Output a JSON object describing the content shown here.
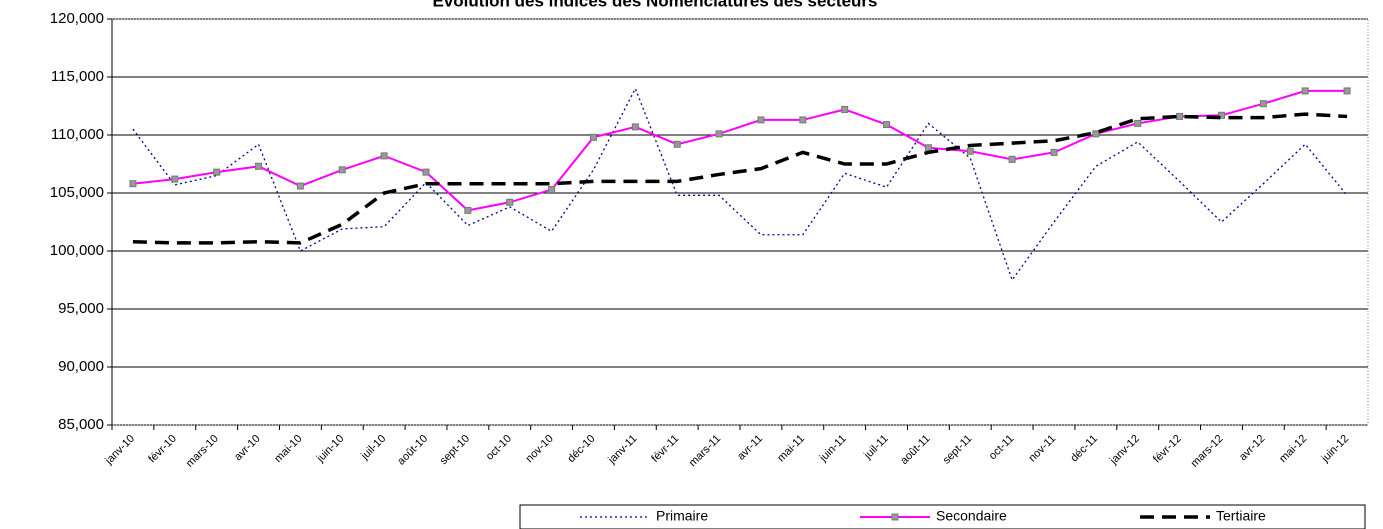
{
  "chart_data": {
    "type": "line",
    "title": "Evolution des indices des Nomenclatures des secteurs",
    "categories": [
      "janv-10",
      "févr-10",
      "mars-10",
      "avr-10",
      "mai-10",
      "juin-10",
      "juil-10",
      "août-10",
      "sept-10",
      "oct-10",
      "nov-10",
      "déc-10",
      "janv-11",
      "févr-11",
      "mars-11",
      "avr-11",
      "mai-11",
      "juin-11",
      "juil-11",
      "août-11",
      "sept-11",
      "oct-11",
      "nov-11",
      "déc-11",
      "janv-12",
      "févr-12",
      "mars-12",
      "avr-12",
      "mai-12",
      "juin-12"
    ],
    "series": [
      {
        "name": "Primaire",
        "color": "#000099",
        "values": [
          110500,
          105700,
          106500,
          109200,
          100000,
          101900,
          102100,
          105900,
          102200,
          103800,
          101700,
          107000,
          114000,
          104800,
          104800,
          101400,
          101400,
          106700,
          105500,
          111000,
          108000,
          97500,
          102500,
          107300,
          109400,
          106000,
          102500,
          105800,
          109200,
          104800
        ]
      },
      {
        "name": "Secondaire",
        "color": "#ff00ff",
        "values": [
          105800,
          106200,
          106800,
          107300,
          105600,
          107000,
          108200,
          106800,
          103500,
          104200,
          105300,
          109800,
          110700,
          109200,
          110100,
          111300,
          111300,
          112200,
          110900,
          108900,
          108600,
          107900,
          108500,
          110100,
          111000,
          111600,
          111700,
          112700,
          113800,
          113800
        ]
      },
      {
        "name": "Tertiaire",
        "color": "#000000",
        "values": [
          100800,
          100700,
          100700,
          100800,
          100700,
          102300,
          105000,
          105800,
          105800,
          105800,
          105800,
          106000,
          106000,
          106000,
          106600,
          107100,
          108500,
          107500,
          107500,
          108500,
          109100,
          109300,
          109500,
          110200,
          111400,
          111600,
          111500,
          111500,
          111800,
          111600
        ]
      }
    ],
    "ylim": [
      85000,
      120000
    ],
    "yticks": [
      {
        "value": 85000,
        "label": "85,000"
      },
      {
        "value": 90000,
        "label": "90,000"
      },
      {
        "value": 95000,
        "label": "95,000"
      },
      {
        "value": 100000,
        "label": "100,000"
      },
      {
        "value": 105000,
        "label": "105,000"
      },
      {
        "value": 110000,
        "label": "110,000"
      },
      {
        "value": 115000,
        "label": "115,000"
      },
      {
        "value": 120000,
        "label": "120,000"
      }
    ],
    "grid": true,
    "legend": "bottom-right"
  }
}
